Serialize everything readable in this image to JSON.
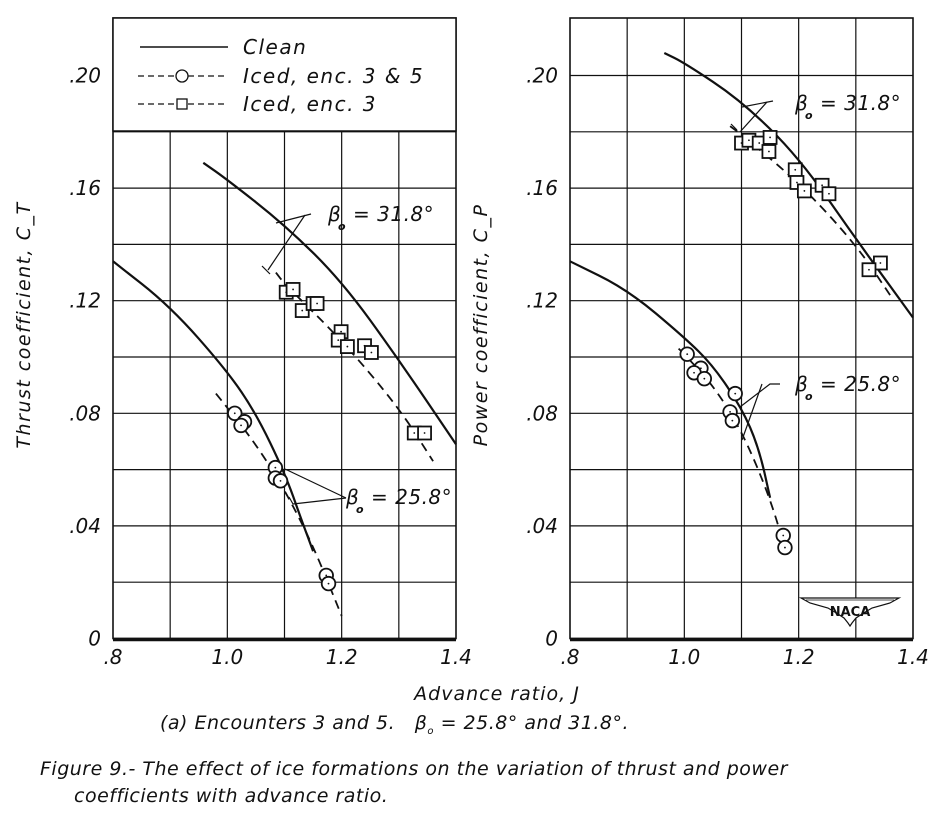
{
  "figure": {
    "xlabel": "Advance ratio, J",
    "subcaption_prefix": "(a) Encounters 3 and 5.",
    "subcaption_beta": "β",
    "subcaption_sub": "o",
    "subcaption_suffix": "= 25.8° and 31.8°.",
    "caption_line1": "Figure 9.- The effect of ice formations on the variation of thrust and power",
    "caption_line2": "coefficients with advance ratio.",
    "logo_text": "NACA",
    "legend": [
      {
        "label": "Clean",
        "style": "solid",
        "marker": "none"
      },
      {
        "label": "Iced, enc. 3 & 5",
        "style": "dashed",
        "marker": "circle"
      },
      {
        "label": "Iced, enc. 3",
        "style": "dashed",
        "marker": "square"
      }
    ]
  },
  "chart_data": [
    {
      "type": "scatter",
      "title": "",
      "xlabel": "Advance ratio, J",
      "ylabel": "Thrust coefficient, C_T",
      "xlim": [
        0.8,
        1.4
      ],
      "ylim": [
        0,
        0.22
      ],
      "x_ticks": [
        ".8",
        "1.0",
        "1.2",
        "1.4"
      ],
      "y_ticks": [
        "0",
        ".04",
        ".08",
        ".12",
        ".16",
        ".20"
      ],
      "grid": true,
      "legend_position": "upper left inside",
      "annotations": [
        {
          "text": "β",
          "sub": "o",
          "rest": "= 31.8°",
          "x": 1.1,
          "y": 0.15
        },
        {
          "text": "β",
          "sub": "o",
          "rest": "= 25.8°",
          "x": 1.17,
          "y": 0.049
        }
      ],
      "series": [
        {
          "name": "Clean, β0 = 31.8°",
          "style": "solid",
          "points": [
            [
              0.958,
              0.169
            ],
            [
              1.0,
              0.163
            ],
            [
              1.1,
              0.147
            ],
            [
              1.2,
              0.127
            ],
            [
              1.3,
              0.099
            ],
            [
              1.4,
              0.069
            ]
          ]
        },
        {
          "name": "Iced, β0 = 31.8° (curve)",
          "style": "dashed",
          "points": [
            [
              1.085,
              0.13
            ],
            [
              1.1,
              0.126
            ],
            [
              1.2,
              0.106
            ],
            [
              1.3,
              0.082
            ],
            [
              1.36,
              0.063
            ]
          ]
        },
        {
          "name": "Clean, β0 = 25.8°",
          "style": "solid",
          "points": [
            [
              0.8,
              0.134
            ],
            [
              0.9,
              0.118
            ],
            [
              1.0,
              0.095
            ],
            [
              1.05,
              0.08
            ],
            [
              1.1,
              0.059
            ],
            [
              1.13,
              0.042
            ],
            [
              1.15,
              0.031
            ]
          ]
        },
        {
          "name": "Iced, β0 = 25.8° (curve)",
          "style": "dashed",
          "points": [
            [
              0.98,
              0.087
            ],
            [
              1.0,
              0.082
            ],
            [
              1.05,
              0.069
            ],
            [
              1.1,
              0.053
            ],
            [
              1.15,
              0.033
            ],
            [
              1.2,
              0.008
            ]
          ]
        },
        {
          "name": "Iced, enc. 3",
          "marker": "square",
          "points": [
            [
              1.103,
              0.123
            ],
            [
              1.115,
              0.124
            ],
            [
              1.131,
              0.1165
            ],
            [
              1.15,
              0.119
            ],
            [
              1.157,
              0.119
            ],
            [
              1.199,
              0.109
            ],
            [
              1.194,
              0.106
            ],
            [
              1.21,
              0.1037
            ],
            [
              1.24,
              0.104
            ],
            [
              1.252,
              0.1016
            ],
            [
              1.327,
              0.073
            ],
            [
              1.345,
              0.073
            ]
          ]
        },
        {
          "name": "Iced, enc. 3 & 5",
          "marker": "circle",
          "points": [
            [
              1.013,
              0.08
            ],
            [
              1.03,
              0.077
            ],
            [
              1.024,
              0.0757
            ],
            [
              1.084,
              0.0607
            ],
            [
              1.084,
              0.057
            ],
            [
              1.093,
              0.056
            ],
            [
              1.173,
              0.0224
            ],
            [
              1.177,
              0.0195
            ]
          ]
        }
      ]
    },
    {
      "type": "scatter",
      "title": "",
      "xlabel": "Advance ratio, J",
      "ylabel": "Power coefficient, C_P",
      "xlim": [
        0.8,
        1.4
      ],
      "ylim": [
        0,
        0.22
      ],
      "x_ticks": [
        ".8",
        "1.0",
        "1.2",
        "1.4"
      ],
      "y_ticks": [
        "0",
        ".04",
        ".08",
        ".12",
        ".16",
        ".20"
      ],
      "grid": true,
      "annotations": [
        {
          "text": "β",
          "sub": "o",
          "rest": "= 31.8°",
          "x": 1.2,
          "y": 0.19
        },
        {
          "text": "β",
          "sub": "o",
          "rest": "= 25.8°",
          "x": 1.2,
          "y": 0.09
        }
      ],
      "series": [
        {
          "name": "Clean, β0 = 31.8°",
          "style": "solid",
          "points": [
            [
              0.965,
              0.208
            ],
            [
              1.0,
              0.2045
            ],
            [
              1.1,
              0.191
            ],
            [
              1.2,
              0.171
            ],
            [
              1.3,
              0.142
            ],
            [
              1.4,
              0.114
            ]
          ]
        },
        {
          "name": "Iced, β0 = 31.8° (curve)",
          "style": "dashed",
          "points": [
            [
              1.08,
              0.182
            ],
            [
              1.1,
              0.179
            ],
            [
              1.2,
              0.162
            ],
            [
              1.3,
              0.14
            ],
            [
              1.36,
              0.122
            ]
          ]
        },
        {
          "name": "Clean, β0 = 25.8°",
          "style": "solid",
          "points": [
            [
              0.8,
              0.134
            ],
            [
              0.9,
              0.124
            ],
            [
              1.0,
              0.107
            ],
            [
              1.05,
              0.097
            ],
            [
              1.1,
              0.082
            ],
            [
              1.13,
              0.068
            ],
            [
              1.15,
              0.05
            ]
          ]
        },
        {
          "name": "Iced, β0 = 25.8° (curve)",
          "style": "dashed",
          "points": [
            [
              0.99,
              0.103
            ],
            [
              1.0,
              0.101
            ],
            [
              1.05,
              0.09
            ],
            [
              1.1,
              0.074
            ],
            [
              1.15,
              0.05
            ],
            [
              1.18,
              0.029
            ]
          ]
        },
        {
          "name": "Iced, enc. 3",
          "marker": "square",
          "points": [
            [
              1.1,
              0.176
            ],
            [
              1.113,
              0.177
            ],
            [
              1.131,
              0.176
            ],
            [
              1.15,
              0.178
            ],
            [
              1.148,
              0.173
            ],
            [
              1.194,
              0.1665
            ],
            [
              1.197,
              0.162
            ],
            [
              1.21,
              0.159
            ],
            [
              1.241,
              0.161
            ],
            [
              1.253,
              0.158
            ],
            [
              1.343,
              0.1334
            ],
            [
              1.323,
              0.131
            ]
          ]
        },
        {
          "name": "Iced, enc. 3 & 5",
          "marker": "circle",
          "points": [
            [
              1.005,
              0.101
            ],
            [
              1.029,
              0.096
            ],
            [
              1.017,
              0.0944
            ],
            [
              1.035,
              0.0923
            ],
            [
              1.089,
              0.087
            ],
            [
              1.08,
              0.0805
            ],
            [
              1.084,
              0.0774
            ],
            [
              1.173,
              0.0366
            ],
            [
              1.176,
              0.0323
            ]
          ]
        }
      ]
    }
  ]
}
